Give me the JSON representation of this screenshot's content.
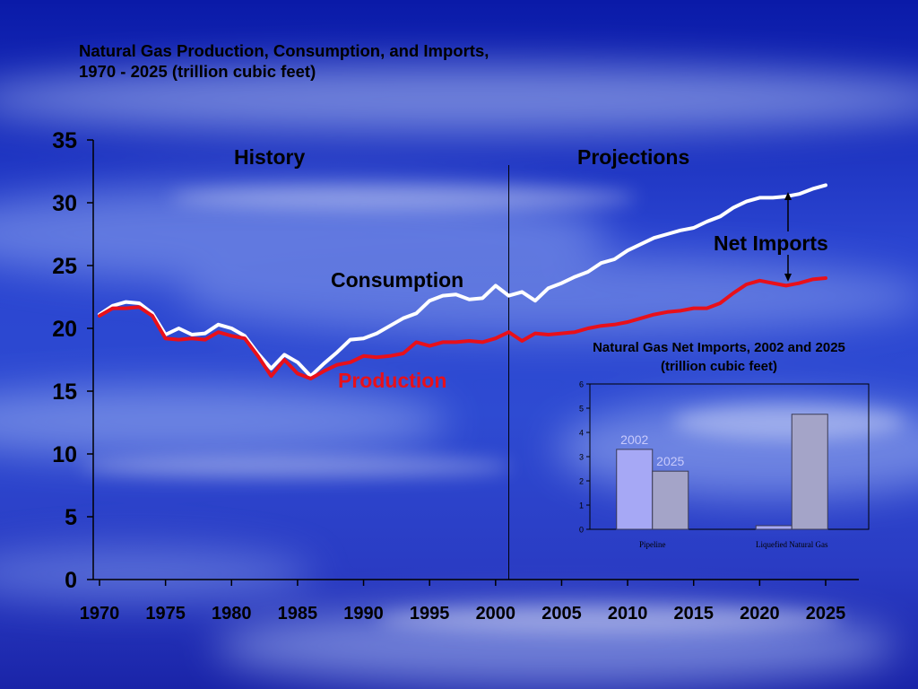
{
  "slide": {
    "title_line1": "Natural Gas Production, Consumption, and Imports,",
    "title_line2": "1970 - 2025 (trillion cubic feet)"
  },
  "chart_data": [
    {
      "type": "line",
      "title": "Natural Gas Production, Consumption, and Imports, 1970 - 2025 (trillion cubic feet)",
      "xlim": [
        1970,
        2028
      ],
      "ylim": [
        0,
        35
      ],
      "x_ticks": [
        "1970",
        "1975",
        "1980",
        "1985",
        "1990",
        "1995",
        "2000",
        "2005",
        "2010",
        "2015",
        "2020",
        "2025"
      ],
      "y_ticks": [
        "0",
        "5",
        "10",
        "15",
        "20",
        "25",
        "30",
        "35"
      ],
      "annotations": {
        "history": "History",
        "projections": "Projections",
        "net_imports": "Net Imports",
        "divider_year": 2001
      },
      "series": [
        {
          "name": "Consumption",
          "color": "#ffffff",
          "x": [
            1970,
            1971,
            1972,
            1973,
            1974,
            1975,
            1976,
            1977,
            1978,
            1979,
            1980,
            1981,
            1982,
            1983,
            1984,
            1985,
            1986,
            1987,
            1988,
            1989,
            1990,
            1991,
            1992,
            1993,
            1994,
            1995,
            1996,
            1997,
            1998,
            1999,
            2000,
            2001,
            2002,
            2003,
            2004,
            2005,
            2006,
            2007,
            2008,
            2009,
            2010,
            2011,
            2012,
            2013,
            2014,
            2015,
            2016,
            2017,
            2018,
            2019,
            2020,
            2021,
            2022,
            2023,
            2024,
            2025
          ],
          "values": [
            21.1,
            21.8,
            22.1,
            22.0,
            21.2,
            19.5,
            20.0,
            19.5,
            19.6,
            20.3,
            20.0,
            19.4,
            18.0,
            16.8,
            17.9,
            17.3,
            16.2,
            17.2,
            18.1,
            19.1,
            19.2,
            19.6,
            20.2,
            20.8,
            21.2,
            22.2,
            22.6,
            22.7,
            22.3,
            22.4,
            23.4,
            22.6,
            22.9,
            22.2,
            23.2,
            23.6,
            24.1,
            24.5,
            25.2,
            25.5,
            26.2,
            26.7,
            27.2,
            27.5,
            27.8,
            28.0,
            28.5,
            28.9,
            29.6,
            30.1,
            30.4,
            30.4,
            30.5,
            30.7,
            31.1,
            31.4
          ]
        },
        {
          "name": "Production",
          "color": "#e8101a",
          "x": [
            1970,
            1971,
            1972,
            1973,
            1974,
            1975,
            1976,
            1977,
            1978,
            1979,
            1980,
            1981,
            1982,
            1983,
            1984,
            1985,
            1986,
            1987,
            1988,
            1989,
            1990,
            1991,
            1992,
            1993,
            1994,
            1995,
            1996,
            1997,
            1998,
            1999,
            2000,
            2001,
            2002,
            2003,
            2004,
            2005,
            2006,
            2007,
            2008,
            2009,
            2010,
            2011,
            2012,
            2013,
            2014,
            2015,
            2016,
            2017,
            2018,
            2019,
            2020,
            2021,
            2022,
            2023,
            2024,
            2025
          ],
          "values": [
            21.0,
            21.6,
            21.6,
            21.7,
            21.0,
            19.2,
            19.1,
            19.2,
            19.1,
            19.7,
            19.4,
            19.2,
            17.8,
            16.2,
            17.5,
            16.4,
            16.0,
            16.6,
            17.1,
            17.3,
            17.8,
            17.7,
            17.8,
            18.0,
            18.9,
            18.6,
            18.9,
            18.9,
            19.0,
            18.9,
            19.2,
            19.7,
            19.0,
            19.6,
            19.5,
            19.6,
            19.7,
            20.0,
            20.2,
            20.3,
            20.5,
            20.8,
            21.1,
            21.3,
            21.4,
            21.6,
            21.6,
            22.0,
            22.8,
            23.5,
            23.8,
            23.6,
            23.4,
            23.6,
            23.9,
            24.0
          ]
        }
      ]
    },
    {
      "type": "bar",
      "title": "Natural Gas Net Imports, 2002 and 2025 (trillion cubic feet)",
      "title_line1": "Natural Gas Net Imports, 2002 and 2025",
      "title_line2": "(trillion cubic feet)",
      "categories": [
        "Pipeline",
        "Liquefied Natural Gas"
      ],
      "ylim": [
        0,
        6
      ],
      "y_ticks": [
        "0",
        "1",
        "2",
        "3",
        "4",
        "5",
        "6"
      ],
      "series": [
        {
          "name": "2002",
          "color": "#a6a8f5",
          "values": [
            3.3,
            0.15
          ]
        },
        {
          "name": "2025",
          "color": "#a4a4c8",
          "values": [
            2.4,
            4.75
          ]
        }
      ]
    }
  ]
}
